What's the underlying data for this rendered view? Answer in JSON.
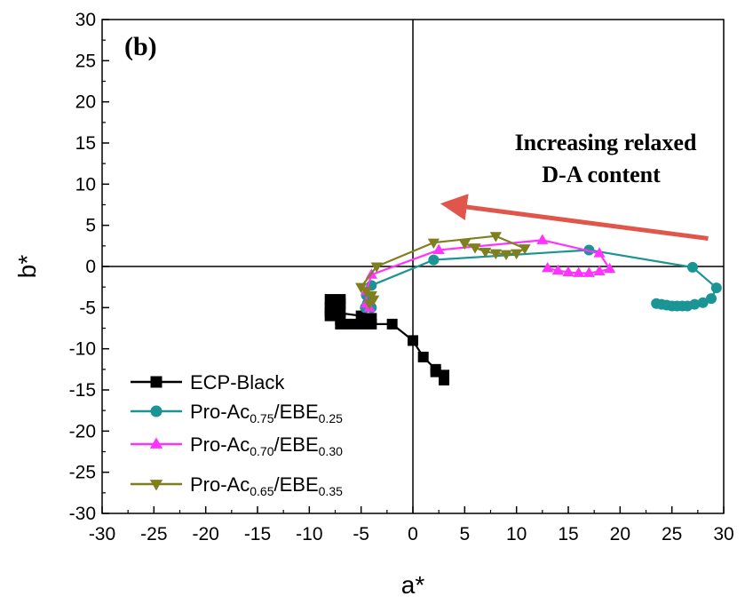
{
  "chart_data": {
    "type": "line",
    "panel_label": "(b)",
    "xlabel": "a*",
    "ylabel": "b*",
    "xlim": [
      -30,
      30
    ],
    "ylim": [
      -30,
      30
    ],
    "x_ticks": [
      -30,
      -25,
      -20,
      -15,
      -10,
      -5,
      0,
      5,
      10,
      15,
      20,
      25,
      30
    ],
    "y_ticks": [
      -30,
      -25,
      -20,
      -15,
      -10,
      -5,
      0,
      5,
      10,
      15,
      20,
      25,
      30
    ],
    "x_tick_labels": [
      "-30",
      "-25",
      "-20",
      "-15",
      "-10",
      "-5",
      "0",
      "5",
      "10",
      "15",
      "20",
      "25",
      "30"
    ],
    "y_tick_labels": [
      "-30",
      "-25",
      "-20",
      "-15",
      "-10",
      "-5",
      "0",
      "5",
      "10",
      "15",
      "20",
      "25",
      "30"
    ],
    "grid": false,
    "zero_lines": true,
    "legend_position": "bottom-left",
    "annotation": {
      "lines": [
        "Increasing relaxed",
        "D-A content"
      ],
      "arrow": {
        "from": [
          28.5,
          3.4
        ],
        "to": [
          3.5,
          7.5
        ],
        "color": "#e0564a"
      }
    },
    "series": [
      {
        "name": "ECP-Black",
        "legend_parts": [
          {
            "t": "ECP-Black",
            "sub": false
          }
        ],
        "color": "#000000",
        "marker": "square",
        "points": [
          [
            3.0,
            -13.8
          ],
          [
            3.0,
            -13.2
          ],
          [
            2.2,
            -12.8
          ],
          [
            2.2,
            -12.5
          ],
          [
            1.0,
            -11.0
          ],
          [
            0.0,
            -9.0
          ],
          [
            -2.0,
            -7.0
          ],
          [
            -4.0,
            -7.0
          ],
          [
            -5.0,
            -7.0
          ],
          [
            -6.0,
            -7.0
          ],
          [
            -7.0,
            -7.0
          ],
          [
            -7.0,
            -6.5
          ],
          [
            -7.0,
            -5.5
          ],
          [
            -7.0,
            -4.5
          ],
          [
            -7.0,
            -4.0
          ],
          [
            -8.0,
            -4.0
          ],
          [
            -8.0,
            -5.0
          ],
          [
            -8.0,
            -6.0
          ],
          [
            -8.0,
            -5.5
          ],
          [
            -5.0,
            -6.0
          ],
          [
            -4.0,
            -6.3
          ]
        ]
      },
      {
        "name": "Pro-Ac0.75/EBE0.25",
        "legend_parts": [
          {
            "t": "Pro-Ac",
            "sub": false
          },
          {
            "t": "0.75",
            "sub": true
          },
          {
            "t": "/EBE",
            "sub": false
          },
          {
            "t": "0.25",
            "sub": true
          }
        ],
        "color": "#1a9494",
        "marker": "circle",
        "points": [
          [
            23.5,
            -4.5
          ],
          [
            24.0,
            -4.6
          ],
          [
            24.5,
            -4.7
          ],
          [
            25.0,
            -4.8
          ],
          [
            25.5,
            -4.8
          ],
          [
            26.0,
            -4.8
          ],
          [
            26.5,
            -4.8
          ],
          [
            27.2,
            -4.6
          ],
          [
            28.0,
            -4.4
          ],
          [
            28.8,
            -3.9
          ],
          [
            29.3,
            -2.6
          ],
          [
            27.0,
            -0.1
          ],
          [
            17.0,
            2.0
          ],
          [
            2.0,
            0.8
          ],
          [
            -4.0,
            -2.3
          ],
          [
            -4.5,
            -3.5
          ],
          [
            -4.4,
            -4.5
          ],
          [
            -4.6,
            -5.0
          ],
          [
            -4.0,
            -5.0
          ]
        ]
      },
      {
        "name": "Pro-Ac0.70/EBE0.30",
        "legend_parts": [
          {
            "t": "Pro-Ac",
            "sub": false
          },
          {
            "t": "0.70",
            "sub": true
          },
          {
            "t": "/EBE",
            "sub": false
          },
          {
            "t": "0.30",
            "sub": true
          }
        ],
        "color": "#ff33ff",
        "marker": "triangle-up",
        "points": [
          [
            13.0,
            -0.2
          ],
          [
            14.0,
            -0.5
          ],
          [
            15.0,
            -0.7
          ],
          [
            16.0,
            -0.8
          ],
          [
            17.0,
            -0.8
          ],
          [
            18.0,
            -0.6
          ],
          [
            19.0,
            -0.3
          ],
          [
            18.0,
            1.6
          ],
          [
            12.5,
            3.2
          ],
          [
            2.5,
            2.0
          ],
          [
            -4.0,
            -1.0
          ],
          [
            -4.5,
            -3.0
          ],
          [
            -4.5,
            -4.5
          ],
          [
            -4.2,
            -5.0
          ]
        ]
      },
      {
        "name": "Pro-Ac0.65/EBE0.35",
        "legend_parts": [
          {
            "t": "Pro-Ac",
            "sub": false
          },
          {
            "t": "0.65",
            "sub": true
          },
          {
            "t": "/EBE",
            "sub": false
          },
          {
            "t": "0.35",
            "sub": true
          }
        ],
        "color": "#7f7f1f",
        "marker": "triangle-down",
        "points": [
          [
            5.0,
            2.8
          ],
          [
            6.0,
            2.3
          ],
          [
            7.0,
            1.8
          ],
          [
            8.0,
            1.6
          ],
          [
            9.0,
            1.5
          ],
          [
            10.0,
            1.6
          ],
          [
            10.8,
            2.2
          ],
          [
            8.0,
            3.7
          ],
          [
            2.0,
            2.9
          ],
          [
            -3.5,
            0.0
          ],
          [
            -5.0,
            -2.5
          ],
          [
            -4.5,
            -3.0
          ],
          [
            -4.0,
            -3.5
          ],
          [
            -3.8,
            -4.0
          ],
          [
            -4.2,
            -4.5
          ]
        ]
      }
    ]
  }
}
